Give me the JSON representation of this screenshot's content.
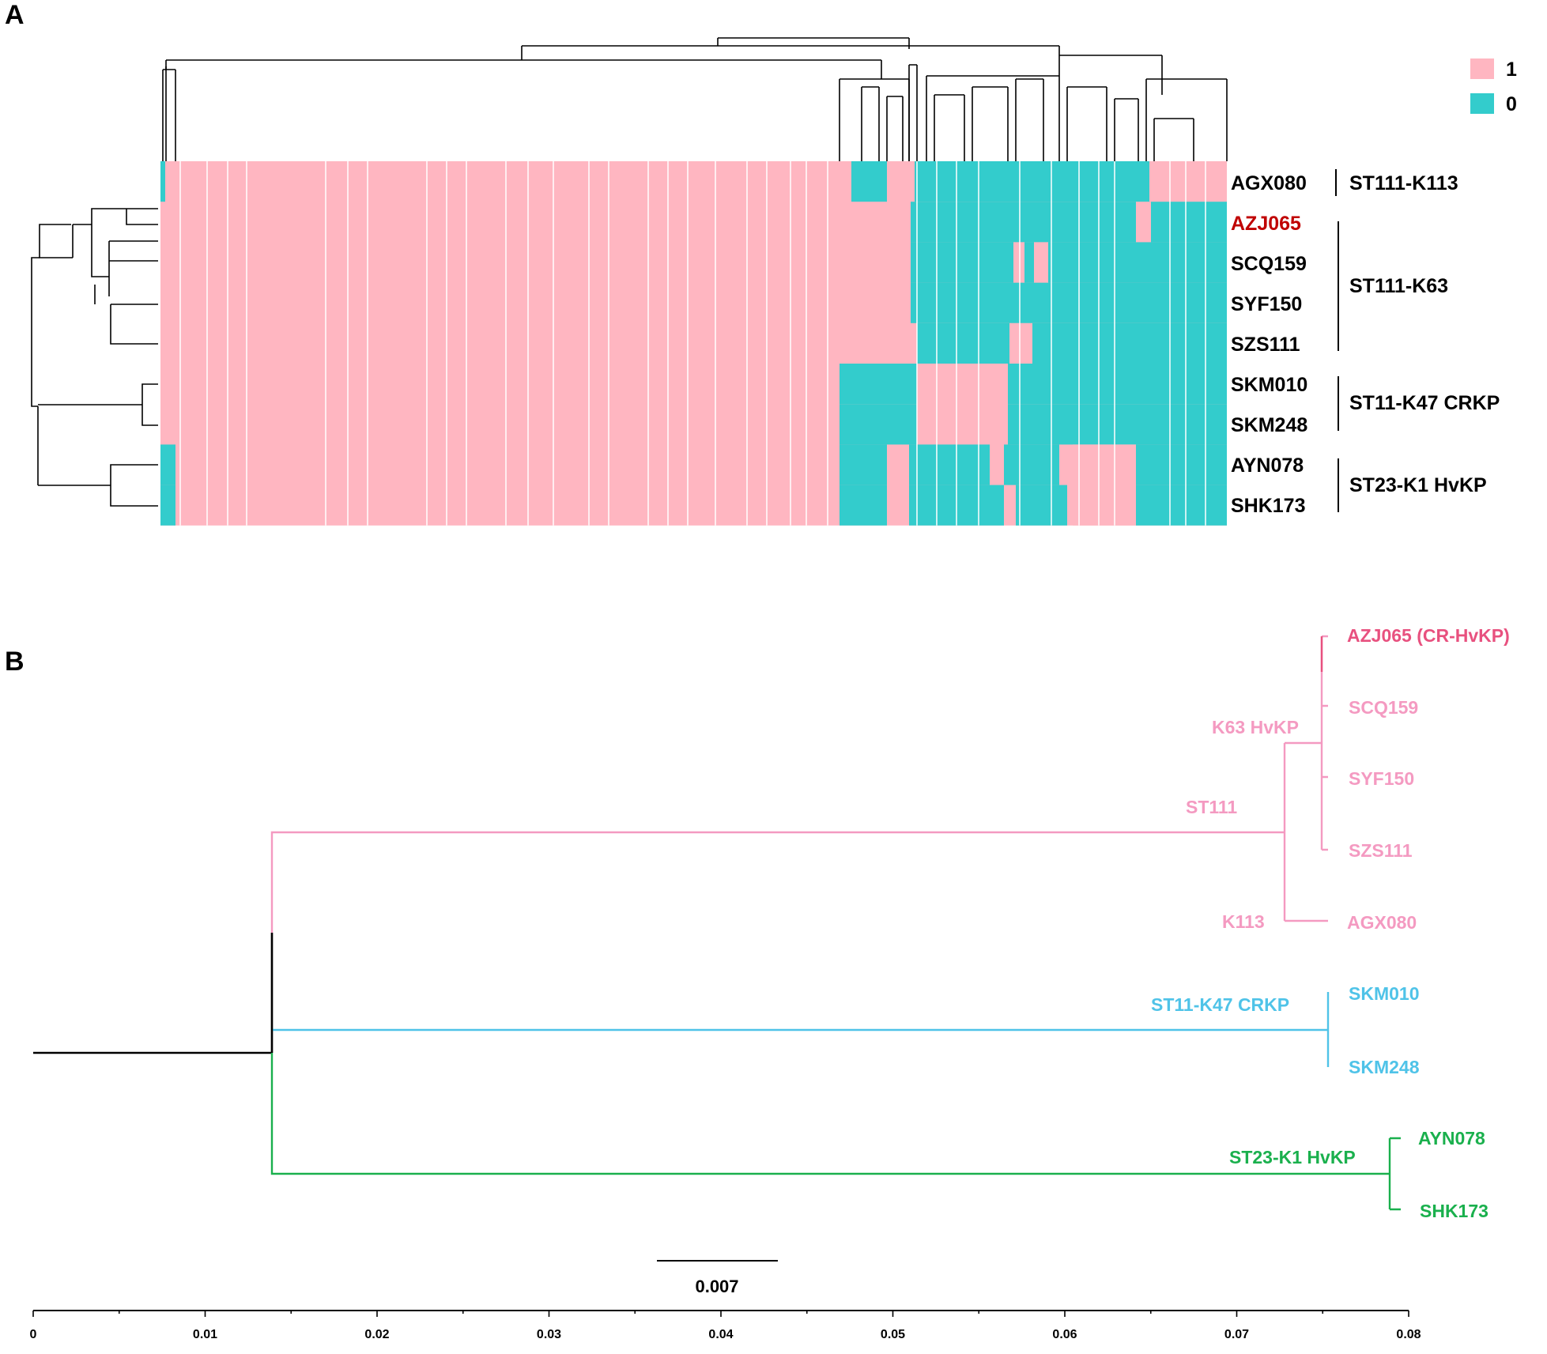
{
  "panel_a": {
    "letter": "A",
    "legend": [
      {
        "label": "1",
        "color": "#ffb6c1"
      },
      {
        "label": "0",
        "color": "#33cccc"
      }
    ],
    "rows": [
      {
        "label": "AGX080",
        "color": "#000000"
      },
      {
        "label": "AZJ065",
        "color": "#c00000"
      },
      {
        "label": "SCQ159",
        "color": "#000000"
      },
      {
        "label": "SYF150",
        "color": "#000000"
      },
      {
        "label": "SZS111",
        "color": "#000000"
      },
      {
        "label": "SKM010",
        "color": "#000000"
      },
      {
        "label": "SKM248",
        "color": "#000000"
      },
      {
        "label": "AYN078",
        "color": "#000000"
      },
      {
        "label": "SHK173",
        "color": "#000000"
      }
    ],
    "groups": [
      {
        "label": "ST111-K113",
        "rows": [
          0,
          0
        ]
      },
      {
        "label": "ST111-K63",
        "rows": [
          1,
          4
        ]
      },
      {
        "label": "ST11-K47 CRKP",
        "rows": [
          5,
          6
        ]
      },
      {
        "label": "ST23-K1 HvKP",
        "rows": [
          7,
          8
        ]
      }
    ]
  },
  "panel_b": {
    "letter": "B",
    "clade_colors": {
      "st111": "#f49ac1",
      "st11": "#4fc3e8",
      "st23": "#1ab04d",
      "root": "#000000"
    },
    "tips": [
      {
        "label": "AZJ065 (CR-HvKP)",
        "clade": "st111_red"
      },
      {
        "label": "SCQ159",
        "clade": "st111"
      },
      {
        "label": "SYF150",
        "clade": "st111"
      },
      {
        "label": "SZS111",
        "clade": "st111"
      },
      {
        "label": "AGX080",
        "clade": "st111"
      },
      {
        "label": "SKM010",
        "clade": "st11"
      },
      {
        "label": "SKM248",
        "clade": "st11"
      },
      {
        "label": "AYN078",
        "clade": "st23"
      },
      {
        "label": "SHK173",
        "clade": "st23"
      }
    ],
    "clade_labels": [
      {
        "label": "K63 HvKP",
        "clade": "st111"
      },
      {
        "label": "ST111",
        "clade": "st111"
      },
      {
        "label": "K113",
        "clade": "st111"
      },
      {
        "label": "ST11-K47 CRKP",
        "clade": "st11"
      },
      {
        "label": "ST23-K1 HvKP",
        "clade": "st23"
      }
    ],
    "scale_bar": "0.007",
    "axis_ticks": [
      "0",
      "0.01",
      "0.02",
      "0.03",
      "0.04",
      "0.05",
      "0.06",
      "0.07",
      "0.08"
    ]
  }
}
